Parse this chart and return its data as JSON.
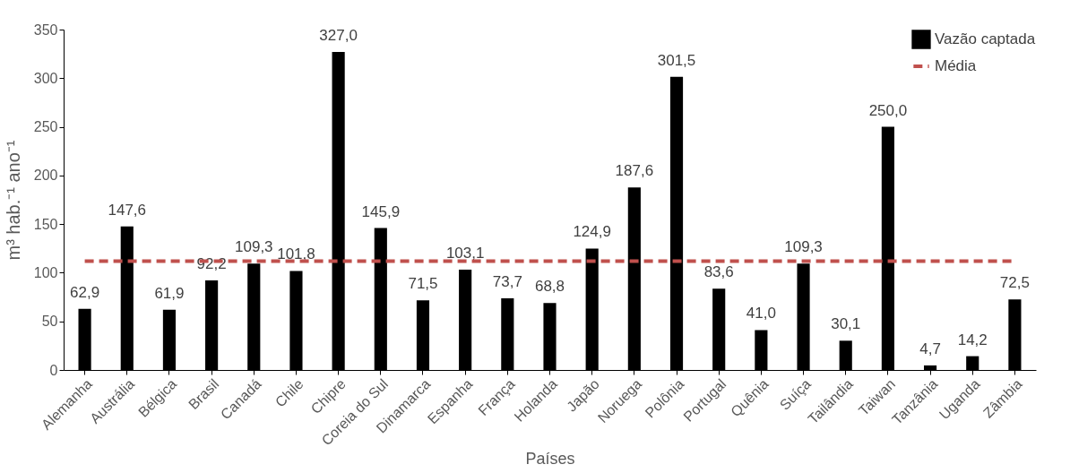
{
  "chart_data": {
    "type": "bar",
    "xlabel": "Países",
    "ylabel": "m³ hab.⁻¹ ano⁻¹",
    "categories": [
      "Alemanha",
      "Austrália",
      "Bélgica",
      "Brasil",
      "Canadá",
      "Chile",
      "Chipre",
      "Coreia do Sul",
      "Dinamarca",
      "Espanha",
      "França",
      "Holanda",
      "Japão",
      "Noruega",
      "Polônia",
      "Portugal",
      "Quênia",
      "Suíça",
      "Tailândia",
      "Taiwan",
      "Tanzânia",
      "Uganda",
      "Zâmbia"
    ],
    "series": [
      {
        "name": "Vazão captada",
        "color": "#000000",
        "values": [
          62.9,
          147.6,
          61.9,
          92.2,
          109.3,
          101.8,
          327.0,
          145.9,
          71.5,
          103.1,
          73.7,
          68.8,
          124.9,
          187.6,
          301.5,
          83.6,
          41.0,
          109.3,
          30.1,
          250.0,
          4.7,
          14.2,
          72.5
        ],
        "value_labels": [
          "62,9",
          "147,6",
          "61,9",
          "92,2",
          "109,3",
          "101,8",
          "327,0",
          "145,9",
          "71,5",
          "103,1",
          "73,7",
          "68,8",
          "124,9",
          "187,6",
          "301,5",
          "83,6",
          "41,0",
          "109,3",
          "30,1",
          "250,0",
          "4,7",
          "14,2",
          "72,5"
        ]
      },
      {
        "name": "Média",
        "type": "line",
        "color": "#c0504d",
        "line_style": "dashed",
        "marker": "none",
        "values": [
          112,
          112,
          112,
          112,
          112,
          112,
          112,
          112,
          112,
          112,
          112,
          112,
          112,
          112,
          112,
          112,
          112,
          112,
          112,
          112,
          112,
          112,
          112
        ]
      }
    ],
    "ylim": [
      0,
      350
    ],
    "yticks": [
      0,
      50,
      100,
      150,
      200,
      250,
      300,
      350
    ],
    "grid": false,
    "legend": "top right"
  }
}
